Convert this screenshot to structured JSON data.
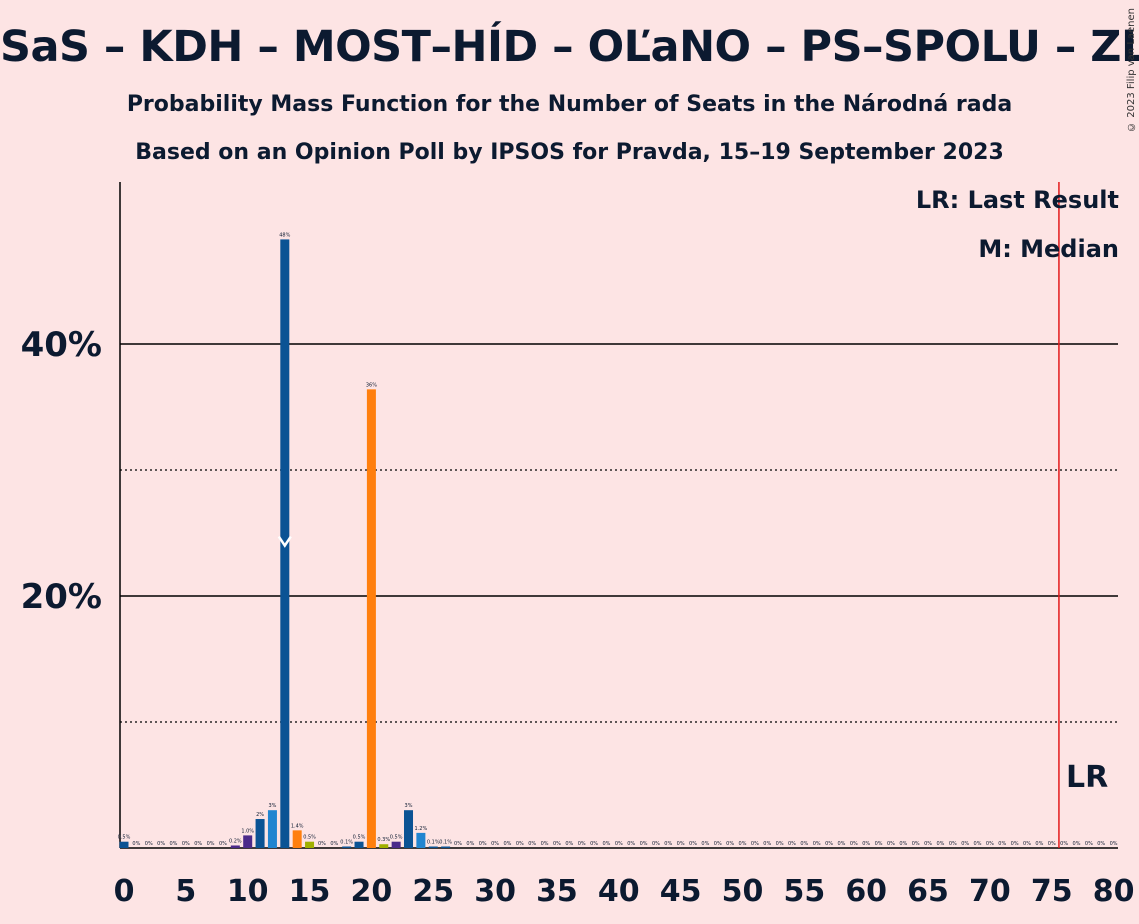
{
  "title": "SaS – KDH – MOST–HÍD – OĽaNO – PS–SPOLU – ZĽ",
  "subtitle1": "Probability Mass Function for the Number of Seats in the Národná rada",
  "subtitle2": "Based on an Opinion Poll by IPSOS for Pravda, 15–19 September 2023",
  "copyright": "© 2023 Filip van Laenen",
  "legend": {
    "last_result": "LR: Last Result",
    "median": "M: Median",
    "lr_marker": "LR"
  },
  "colors": {
    "background": "#fde4e4",
    "dark_blue": "#0b5394",
    "light_blue": "#2185d0",
    "orange": "#ff7f0e",
    "olive": "#a0b000",
    "purple": "#4b2a8a",
    "last_result_line": "#e31a1c",
    "axis": "#000000"
  },
  "chart_data": {
    "type": "bar",
    "xlabel": "",
    "ylabel": "",
    "xlim": [
      0,
      80
    ],
    "ylim": [
      0,
      52
    ],
    "x_ticks": [
      0,
      5,
      10,
      15,
      20,
      25,
      30,
      35,
      40,
      45,
      50,
      55,
      60,
      65,
      70,
      75,
      80
    ],
    "y_ticks": [
      {
        "value": 20,
        "label": "20%"
      },
      {
        "value": 40,
        "label": "40%"
      }
    ],
    "dotted_gridlines": [
      10,
      30
    ],
    "median": 13,
    "last_result": 76,
    "bars": [
      {
        "x": 0,
        "value": 0.5,
        "label": "0.5%",
        "color": "dark_blue"
      },
      {
        "x": 1,
        "value": 0,
        "label": "0%"
      },
      {
        "x": 2,
        "value": 0,
        "label": "0%"
      },
      {
        "x": 3,
        "value": 0,
        "label": "0%"
      },
      {
        "x": 4,
        "value": 0,
        "label": "0%"
      },
      {
        "x": 5,
        "value": 0,
        "label": "0%"
      },
      {
        "x": 6,
        "value": 0,
        "label": "0%"
      },
      {
        "x": 7,
        "value": 0,
        "label": "0%"
      },
      {
        "x": 8,
        "value": 0,
        "label": "0%"
      },
      {
        "x": 9,
        "value": 0.2,
        "label": "0.2%",
        "color": "purple"
      },
      {
        "x": 10,
        "value": 1.0,
        "label": "1.0%",
        "color": "purple"
      },
      {
        "x": 11,
        "value": 2.3,
        "label": "2%",
        "color": "dark_blue"
      },
      {
        "x": 12,
        "value": 3.0,
        "label": "3%",
        "color": "light_blue"
      },
      {
        "x": 13,
        "value": 48.3,
        "label": "48%",
        "color": "dark_blue"
      },
      {
        "x": 14,
        "value": 1.4,
        "label": "1.4%",
        "color": "orange"
      },
      {
        "x": 15,
        "value": 0.5,
        "label": "0.5%",
        "color": "olive"
      },
      {
        "x": 16,
        "value": 0,
        "label": "0%"
      },
      {
        "x": 17,
        "value": 0,
        "label": "0%"
      },
      {
        "x": 18,
        "value": 0.1,
        "label": "0.1%",
        "color": "dark_blue"
      },
      {
        "x": 19,
        "value": 0.5,
        "label": "0.5%",
        "color": "dark_blue"
      },
      {
        "x": 20,
        "value": 36.4,
        "label": "36%",
        "color": "orange"
      },
      {
        "x": 21,
        "value": 0.3,
        "label": "0.3%",
        "color": "olive"
      },
      {
        "x": 22,
        "value": 0.5,
        "label": "0.5%",
        "color": "purple"
      },
      {
        "x": 23,
        "value": 3.0,
        "label": "3%",
        "color": "dark_blue"
      },
      {
        "x": 24,
        "value": 1.2,
        "label": "1.2%",
        "color": "light_blue"
      },
      {
        "x": 25,
        "value": 0.1,
        "label": "0.1%",
        "color": "dark_blue"
      },
      {
        "x": 26,
        "value": 0.1,
        "label": "0.1%",
        "color": "dark_blue"
      },
      {
        "x": 27,
        "value": 0,
        "label": "0%"
      },
      {
        "x": 28,
        "value": 0,
        "label": "0%"
      },
      {
        "x": 29,
        "value": 0,
        "label": "0%"
      },
      {
        "x": 30,
        "value": 0,
        "label": "0%"
      },
      {
        "x": 31,
        "value": 0,
        "label": "0%"
      },
      {
        "x": 32,
        "value": 0,
        "label": "0%"
      },
      {
        "x": 33,
        "value": 0,
        "label": "0%"
      },
      {
        "x": 34,
        "value": 0,
        "label": "0%"
      },
      {
        "x": 35,
        "value": 0,
        "label": "0%"
      },
      {
        "x": 36,
        "value": 0,
        "label": "0%"
      },
      {
        "x": 37,
        "value": 0,
        "label": "0%"
      },
      {
        "x": 38,
        "value": 0,
        "label": "0%"
      },
      {
        "x": 39,
        "value": 0,
        "label": "0%"
      },
      {
        "x": 40,
        "value": 0,
        "label": "0%"
      },
      {
        "x": 41,
        "value": 0,
        "label": "0%"
      },
      {
        "x": 42,
        "value": 0,
        "label": "0%"
      },
      {
        "x": 43,
        "value": 0,
        "label": "0%"
      },
      {
        "x": 44,
        "value": 0,
        "label": "0%"
      },
      {
        "x": 45,
        "value": 0,
        "label": "0%"
      },
      {
        "x": 46,
        "value": 0,
        "label": "0%"
      },
      {
        "x": 47,
        "value": 0,
        "label": "0%"
      },
      {
        "x": 48,
        "value": 0,
        "label": "0%"
      },
      {
        "x": 49,
        "value": 0,
        "label": "0%"
      },
      {
        "x": 50,
        "value": 0,
        "label": "0%"
      },
      {
        "x": 51,
        "value": 0,
        "label": "0%"
      },
      {
        "x": 52,
        "value": 0,
        "label": "0%"
      },
      {
        "x": 53,
        "value": 0,
        "label": "0%"
      },
      {
        "x": 54,
        "value": 0,
        "label": "0%"
      },
      {
        "x": 55,
        "value": 0,
        "label": "0%"
      },
      {
        "x": 56,
        "value": 0,
        "label": "0%"
      },
      {
        "x": 57,
        "value": 0,
        "label": "0%"
      },
      {
        "x": 58,
        "value": 0,
        "label": "0%"
      },
      {
        "x": 59,
        "value": 0,
        "label": "0%"
      },
      {
        "x": 60,
        "value": 0,
        "label": "0%"
      },
      {
        "x": 61,
        "value": 0,
        "label": "0%"
      },
      {
        "x": 62,
        "value": 0,
        "label": "0%"
      },
      {
        "x": 63,
        "value": 0,
        "label": "0%"
      },
      {
        "x": 64,
        "value": 0,
        "label": "0%"
      },
      {
        "x": 65,
        "value": 0,
        "label": "0%"
      },
      {
        "x": 66,
        "value": 0,
        "label": "0%"
      },
      {
        "x": 67,
        "value": 0,
        "label": "0%"
      },
      {
        "x": 68,
        "value": 0,
        "label": "0%"
      },
      {
        "x": 69,
        "value": 0,
        "label": "0%"
      },
      {
        "x": 70,
        "value": 0,
        "label": "0%"
      },
      {
        "x": 71,
        "value": 0,
        "label": "0%"
      },
      {
        "x": 72,
        "value": 0,
        "label": "0%"
      },
      {
        "x": 73,
        "value": 0,
        "label": "0%"
      },
      {
        "x": 74,
        "value": 0,
        "label": "0%"
      },
      {
        "x": 75,
        "value": 0,
        "label": "0%"
      },
      {
        "x": 76,
        "value": 0,
        "label": "0%"
      },
      {
        "x": 77,
        "value": 0,
        "label": "0%"
      },
      {
        "x": 78,
        "value": 0,
        "label": "0%"
      },
      {
        "x": 79,
        "value": 0,
        "label": "0%"
      },
      {
        "x": 80,
        "value": 0,
        "label": "0%"
      }
    ]
  }
}
